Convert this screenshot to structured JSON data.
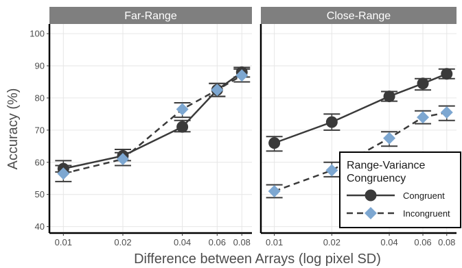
{
  "chart_data": {
    "type": "line",
    "panels": [
      {
        "title": "Far-Range",
        "x": [
          0.01,
          0.02,
          0.04,
          0.06,
          0.08
        ],
        "series": [
          {
            "name": "Congruent",
            "values": [
              58.0,
              62.0,
              71.0,
              82.5,
              88.0
            ],
            "error": [
              [
                57.0,
                60.5
              ],
              [
                60.5,
                64.0
              ],
              [
                69.5,
                73.0
              ],
              [
                80.5,
                84.5
              ],
              [
                86.5,
                89.5
              ]
            ]
          },
          {
            "name": "Incongruent",
            "values": [
              56.5,
              61.0,
              76.5,
              82.5,
              87.0
            ],
            "error": [
              [
                54.0,
                59.0
              ],
              [
                59.0,
                63.0
              ],
              [
                74.0,
                78.5
              ],
              [
                80.5,
                84.5
              ],
              [
                85.0,
                89.0
              ]
            ]
          }
        ]
      },
      {
        "title": "Close-Range",
        "x": [
          0.01,
          0.02,
          0.04,
          0.06,
          0.08
        ],
        "series": [
          {
            "name": "Congruent",
            "values": [
              66.0,
              72.5,
              80.5,
              84.5,
              87.5
            ],
            "error": [
              [
                63.5,
                68.0
              ],
              [
                70.0,
                75.0
              ],
              [
                79.0,
                82.0
              ],
              [
                82.5,
                86.0
              ],
              [
                86.0,
                89.0
              ]
            ]
          },
          {
            "name": "Incongruent",
            "values": [
              51.0,
              57.5,
              67.5,
              74.0,
              75.5
            ],
            "error": [
              [
                49.0,
                53.0
              ],
              [
                55.5,
                60.0
              ],
              [
                65.0,
                69.5
              ],
              [
                72.0,
                76.0
              ],
              [
                73.0,
                77.5
              ]
            ]
          }
        ]
      }
    ],
    "x_tick_labels": [
      "0.01",
      "0.02",
      "0.04",
      "0.06",
      "0.08"
    ],
    "xlabel": "Difference between Arrays (log pixel SD)",
    "ylabel": "Accuracy (%)",
    "ylim": [
      38,
      103
    ],
    "yticks": [
      40,
      50,
      60,
      70,
      80,
      90,
      100
    ],
    "x_scale": "log",
    "grid": true,
    "legend": {
      "title_line1": "Range-Variance",
      "title_line2": "Congruency",
      "placement": "bottom-right",
      "entries": [
        "Congruent",
        "Incongruent"
      ]
    },
    "colors": {
      "congruent": "#3a3a3a",
      "incongruent": "#7da7d1",
      "strip": "#7f7f7f",
      "grid": "#e6e6e6"
    }
  }
}
